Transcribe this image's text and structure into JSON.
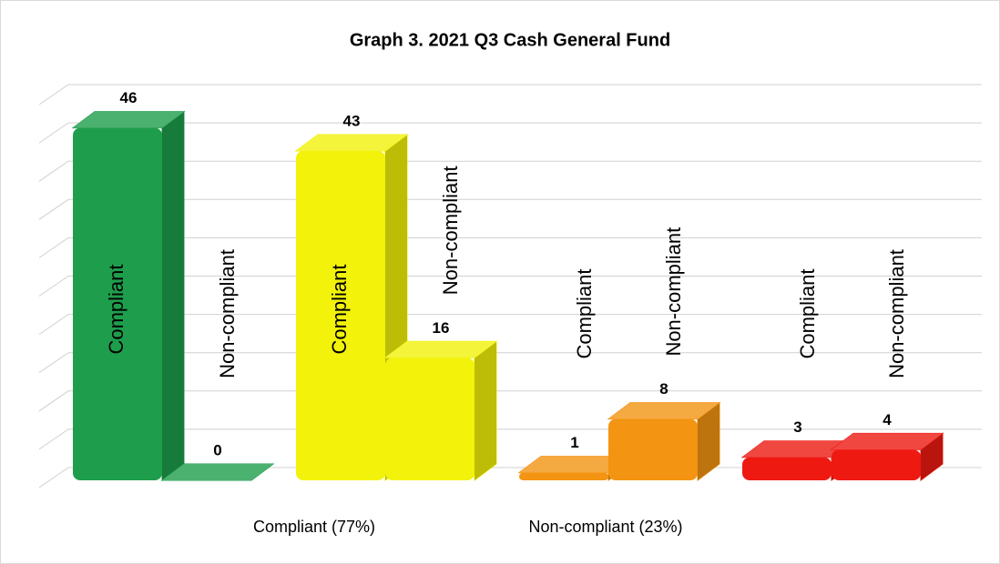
{
  "chart_data": {
    "type": "bar3d",
    "title": "Graph 3. 2021 Q3 Cash General Fund",
    "categories": [
      "Compliant",
      "Non-compliant",
      "Compliant",
      "Non-compliant",
      "Compliant",
      "Non-compliant",
      "Compliant",
      "Non-compliant"
    ],
    "values": [
      46,
      0,
      43,
      16,
      1,
      8,
      3,
      4
    ],
    "colors": [
      "#1e9e4c",
      "#1e9e4c",
      "#f2f20a",
      "#f2f20a",
      "#f39412",
      "#f39412",
      "#ee1a12",
      "#ee1a12"
    ],
    "groups": [
      "Compliant (77%)",
      "Non-compliant (23%)"
    ],
    "ylim": [
      0,
      50
    ],
    "yticks": [
      0,
      5,
      10,
      15,
      20,
      25,
      30,
      35,
      40,
      45,
      50
    ],
    "grid": true,
    "tick_labels": false
  }
}
